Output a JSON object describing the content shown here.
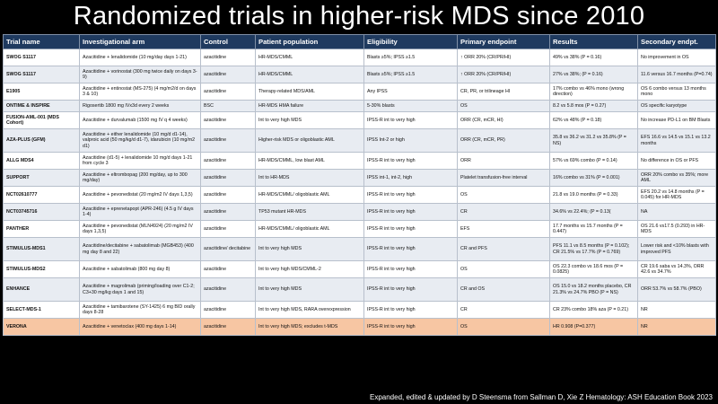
{
  "title": "Randomized trials in higher-risk MDS since 2010",
  "table": {
    "headers": [
      "Trial name",
      "Investigational arm",
      "Control",
      "Patient population",
      "Eligibility",
      "Primary endpoint",
      "Results",
      "Secondary endpt."
    ],
    "rows": [
      [
        "SWOG S1117",
        "Azacitidine + lenalidomide (10 mg/day days 1-21)",
        "azacitidine",
        "HR-MDS/CMML",
        "Blasts ≥5%; IPSS ≥1.5",
        "↑ ORR 20% (CR/PR/HI)",
        "49% vs 38% (P = 0.16)",
        "No improvement in OS"
      ],
      [
        "SWOG S1117",
        "Azacitidine + vorinostat (300 mg twice daily on days 3-9)",
        "azacitidine",
        "HR-MDS/CMML",
        "Blasts ≥5%; IPSS ≥1.5",
        "↑ ORR 20% (CR/PR/HI)",
        "27% vs 38%; (P = 0.16)",
        "11.6 versus 16.7 months (P=0.74)"
      ],
      [
        "E1905",
        "Azacitidine + entinostat (MS-275) (4 mg/m2/d on days 3 & 10)",
        "azacitidine",
        "Therapy-related MDS/AML",
        "Any IPSS",
        "CR, PR, or trilineage HI",
        "17% combo vs 46% mono (wrong direction)",
        "OS 6 combo versus 13 months mono"
      ],
      [
        "ONTIME & INSPIRE",
        "Rigosertib 1800 mg IVx3d every 2 weeks",
        "BSC",
        "HR-MDS HMA failure",
        "5-30% blasts",
        "OS",
        "8.2 vs 5.8 mos (P = 0.27)",
        "OS specific karyotype"
      ],
      [
        "FUSION-AML-001 (MDS Cohort)",
        "Azacitidine + durvalumab (1500 mg IV q 4 weeks)",
        "azacitidine",
        "Int to very high MDS",
        "IPSS-R int to very high",
        "ORR (CR, mCR, HI)",
        "62% vs 48% (P = 0.18)",
        "No increase PD-L1 on BM Blasts"
      ],
      [
        "AZA-PLUS (GFM)",
        "Azacitidine + either lenalidomide (10 mg/d d1-14), valproic acid (50 mg/kg/d d1-7), idarubicin (10 mg/m2 d1)",
        "azacitidine",
        "Higher-risk MDS or oligoblastic AML",
        "IPSS Int-2 or high",
        "ORR (CR, mCR, PR)",
        "35.8 vs 36.2 vs 31.2 vs 35.8% (P = NS)",
        "EFS 16.6 vs 14.5 vs 15.1 vs 13.2 months"
      ],
      [
        "ALLG MDS4",
        "Azacitidine (d1-5) + lenalidomide 10 mg/d days 1-21 from cycle 3",
        "azacitidine",
        "HR-MDS/CMML, low blast AML",
        "IPSS-R int to very high",
        "ORR",
        "57% vs 69% combo (P = 0.14)",
        "No difference in OS or PFS"
      ],
      [
        "SUPPORT",
        "Azacitidine + eltrombopag (200 mg/day, up to 300 mg/day)",
        "azacitidine",
        "Int to HR-MDS",
        "IPSS int-1, int-2, high",
        "Platelet transfusion-free interval",
        "16% combo vs 31% (P = 0.001)",
        "ORR 20% combo vs 35%; more AML"
      ],
      [
        "NCT02610777",
        "Azacitidine + pevonedistat (20 mg/m2 IV days 1,3,5)",
        "azacitidine",
        "HR-MDS/CMML/ oligoblastic AML",
        "IPSS-R int to very high",
        "OS",
        "21.8 vs 19.0 months (P = 0.33)",
        "EFS 20.2 vs 14.8 months (P = 0.045) for HR-MDS"
      ],
      [
        "NCT03745716",
        "Azacitidine + eprenetapopt (APR-246) (4.5 g IV days 1-4)",
        "azacitidine",
        "TP53 mutant HR-MDS",
        "IPSS-R int to very high",
        "CR",
        "34.6% vs 22.4%; (P = 0.13(",
        "NA"
      ],
      [
        "PANTHER",
        "Azacitidine + pevonedistat (MLN4924) (20 mg/m2 IV days 1,3,5)",
        "azacitidine",
        "HR-MDS/CMML/ oligoblastic AML",
        "IPSS-R int to very high",
        "EFS",
        "17.7 months vs 15.7 months (P = 0.447)",
        "OS 21.6 vs17.5 (0.293) in HR-MDS"
      ],
      [
        "STIMULUS-MDS1",
        "Azacitidine/decitabine + sabatolimab (MGB453) (400 mg day 8 and 22)",
        "azacitidine/ decitabine",
        "Int to very high MDS",
        "IPSS-R int to very high",
        "CR and PFS",
        "PFS 11.1 vs 8.5 months (P = 0.102); CR 21.5% vs 17.7% (P = 0.769)",
        "Lower risk and <10% blasts with improved PFS"
      ],
      [
        "STIMULUS-MDS2",
        "Azacitidine + sabatolimab (800 mg day 8)",
        "azacitidine",
        "Int to very high MDS/CMML-2",
        "IPSS-R int to very high",
        "OS",
        "OS 22.3 combo vs 18.6 mos (P = 0.0825)",
        "CR 19.6 saba vs 14.3%, ORR 42.6 vs 34.7%"
      ],
      [
        "ENHANCE",
        "Azacitidine + magrolimab (priming/loading over C1-2; C3+30 mg/kg days 1 and 15)",
        "azacitidine",
        "Int to very high MDS",
        "IPSS-R int to very high",
        "CR and OS",
        "OS 15.0 vs 18.2 months placebo, CR 21.3% vs 24.7% PBO (P = NS)",
        "ORR 53.7% vs 58.7% (PBO)"
      ],
      [
        "SELECT-MDS-1",
        "Azacitidine + tamibarotene (SY-1425) 6 mg BID orally days 8-28",
        "azacitidine",
        "Int to very high MDS, RARA overexpression",
        "IPSS-R int to very high",
        "CR",
        "CR 23% combo 18% aza (P = 0.21)",
        "NR"
      ],
      [
        "VERONA",
        "Azacitidine + venetoclax (400 mg days 1-14)",
        "azacitidine",
        "Int to very high MDS; excludes t-MDS",
        "IPSS-R int to very high",
        "OS",
        "HR 0.908 (P=0.377)",
        "NR"
      ]
    ]
  },
  "caption": "Expanded, edited & updated by D Steensma  from Sallman D, Xie Z Hematology: ASH Education Book 2023"
}
